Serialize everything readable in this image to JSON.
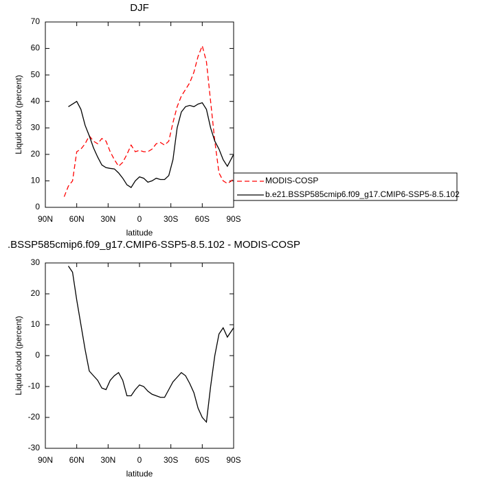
{
  "chart_data": [
    {
      "type": "line",
      "title": "DJF",
      "x_label": "latitude",
      "y_label": "Liquid cloud (percent)",
      "x": [
        72,
        68,
        64,
        60,
        56,
        52,
        48,
        44,
        40,
        36,
        32,
        28,
        24,
        20,
        16,
        12,
        8,
        4,
        0,
        -4,
        -8,
        -12,
        -16,
        -20,
        -24,
        -28,
        -32,
        -36,
        -40,
        -44,
        -48,
        -52,
        -56,
        -60,
        -64,
        -68,
        -72,
        -76,
        -80,
        -84,
        -88,
        -90
      ],
      "series": [
        {
          "name": "MODIS-COSP",
          "color": "#ff0000",
          "dashed": true,
          "values": [
            4,
            8,
            10,
            21,
            22,
            24,
            27,
            25,
            24,
            26,
            25,
            21,
            18,
            15.5,
            17,
            20,
            23.5,
            21,
            21.5,
            21,
            21,
            22,
            24,
            24.5,
            23.5,
            25,
            32,
            38,
            42,
            44.5,
            47,
            51,
            57,
            61,
            55,
            40,
            25,
            13,
            10,
            9,
            10,
            11
          ]
        },
        {
          "name": "b.e21.BSSP585cmip6.f09_g17.CMIP6-SSP5-8.5.102",
          "color": "#000000",
          "dashed": false,
          "values": [
            null,
            38,
            39,
            40,
            37,
            31,
            27,
            22.5,
            19,
            16,
            15,
            14.7,
            14.5,
            13,
            11,
            8.5,
            7.5,
            10,
            11.5,
            11,
            9.5,
            10,
            11,
            10.5,
            10.5,
            12,
            18,
            30,
            36,
            38,
            38.5,
            38,
            39,
            39.5,
            37,
            30,
            25,
            22,
            18,
            15.5,
            18.5,
            20
          ]
        }
      ],
      "xlim": [
        90,
        -90
      ],
      "xticks": [
        {
          "value": 90,
          "label": "90N"
        },
        {
          "value": 60,
          "label": "60N"
        },
        {
          "value": 30,
          "label": "30N"
        },
        0,
        {
          "value": -30,
          "label": "30S"
        },
        {
          "value": -60,
          "label": "60S"
        },
        {
          "value": -90,
          "label": "90S"
        }
      ],
      "ylim": [
        0,
        70
      ],
      "yticks": [
        0,
        10,
        20,
        30,
        40,
        50,
        60,
        70
      ],
      "grid": false,
      "legend": "right"
    },
    {
      "type": "line",
      "title": ".BSSP585cmip6.f09_g17.CMIP6-SSP5-8.5.102 - MODIS-COSP",
      "x_label": "latitude",
      "y_label": "Liquid cloud (percent)",
      "x": [
        68,
        64,
        60,
        56,
        52,
        48,
        44,
        40,
        36,
        32,
        28,
        24,
        20,
        16,
        12,
        8,
        4,
        0,
        -4,
        -8,
        -12,
        -16,
        -20,
        -24,
        -28,
        -32,
        -36,
        -40,
        -44,
        -48,
        -52,
        -56,
        -60,
        -64,
        -68,
        -72,
        -76,
        -80,
        -84,
        -88,
        -90
      ],
      "values": [
        29,
        27,
        18,
        10,
        2,
        -5,
        -6.5,
        -8,
        -10.5,
        -11,
        -8,
        -6.5,
        -5.5,
        -8,
        -13,
        -13,
        -11,
        -9.5,
        -10,
        -11.5,
        -12.5,
        -13,
        -13.5,
        -13.5,
        -11,
        -8.5,
        -7,
        -5.5,
        -6.5,
        -9,
        -12,
        -17,
        -20,
        -21.5,
        -10,
        0,
        7,
        9,
        6,
        8,
        9
      ],
      "color": "#000000",
      "xlim": [
        90,
        -90
      ],
      "xticks": [
        {
          "value": 90,
          "label": "90N"
        },
        {
          "value": 60,
          "label": "60N"
        },
        {
          "value": 30,
          "label": "30N"
        },
        0,
        {
          "value": -30,
          "label": "30S"
        },
        {
          "value": -60,
          "label": "60S"
        },
        {
          "value": -90,
          "label": "90S"
        }
      ],
      "ylim": [
        -30,
        30
      ],
      "yticks": [
        -30,
        -20,
        -10,
        0,
        10,
        20,
        30
      ],
      "grid": false
    }
  ]
}
